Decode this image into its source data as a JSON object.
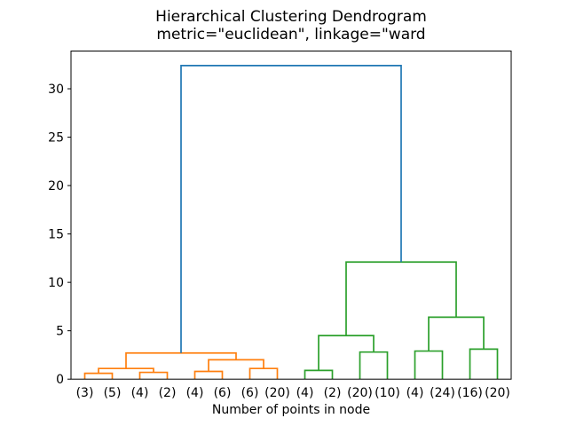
{
  "chart_data": {
    "type": "dendrogram",
    "title": "Hierarchical Clustering Dendrogram",
    "subtitle": "metric=\"euclidean\", linkage=\"ward",
    "xlabel": "Number of points in node",
    "ylabel": "",
    "grid": false,
    "yticks": [
      0,
      5,
      10,
      15,
      20,
      25,
      30
    ],
    "ylim": [
      0,
      33.9
    ],
    "leaves": [
      "(3)",
      "(5)",
      "(4)",
      "(2)",
      "(4)",
      "(6)",
      "(6)",
      "(20)",
      "(4)",
      "(2)",
      "(20)",
      "(10)",
      "(4)",
      "(24)",
      "(16)",
      "(20)"
    ],
    "merges": [
      {
        "id": "M0",
        "children": [
          "L0",
          "L1"
        ],
        "height": 0.6,
        "color": "orange"
      },
      {
        "id": "M1",
        "children": [
          "L2",
          "L3"
        ],
        "height": 0.7,
        "color": "orange"
      },
      {
        "id": "M2",
        "children": [
          "M0",
          "M1"
        ],
        "height": 1.1,
        "color": "orange"
      },
      {
        "id": "M3",
        "children": [
          "L4",
          "L5"
        ],
        "height": 0.8,
        "color": "orange"
      },
      {
        "id": "M4",
        "children": [
          "L6",
          "L7"
        ],
        "height": 1.1,
        "color": "orange"
      },
      {
        "id": "M5",
        "children": [
          "M3",
          "M4"
        ],
        "height": 2.0,
        "color": "orange"
      },
      {
        "id": "M6",
        "children": [
          "M2",
          "M5"
        ],
        "height": 2.7,
        "color": "orange"
      },
      {
        "id": "M7",
        "children": [
          "L8",
          "L9"
        ],
        "height": 0.9,
        "color": "green"
      },
      {
        "id": "M8",
        "children": [
          "L10",
          "L11"
        ],
        "height": 2.8,
        "color": "green"
      },
      {
        "id": "M9",
        "children": [
          "M7",
          "M8"
        ],
        "height": 4.5,
        "color": "green"
      },
      {
        "id": "M10",
        "children": [
          "L12",
          "L13"
        ],
        "height": 2.9,
        "color": "green"
      },
      {
        "id": "M11",
        "children": [
          "L14",
          "L15"
        ],
        "height": 3.1,
        "color": "green"
      },
      {
        "id": "M12",
        "children": [
          "M10",
          "M11"
        ],
        "height": 6.4,
        "color": "green"
      },
      {
        "id": "M13",
        "children": [
          "M9",
          "M12"
        ],
        "height": 12.1,
        "color": "green"
      },
      {
        "id": "M14",
        "children": [
          "M6",
          "M13"
        ],
        "height": 32.4,
        "color": "blue"
      }
    ],
    "colors": {
      "blue": "#1f77b4",
      "orange": "#ff7f0e",
      "green": "#2ca02c",
      "axis": "#000000",
      "background": "#ffffff"
    },
    "legend": null
  }
}
